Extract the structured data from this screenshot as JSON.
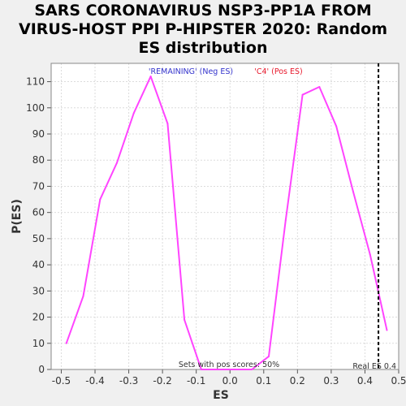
{
  "chart_data": {
    "type": "line",
    "title": "SARS CORONAVIRUS NSP3-PP1A FROM VIRUS-HOST PPI P-HIPSTER 2020: Random ES distribution",
    "xlabel": "ES",
    "ylabel": "P(ES)",
    "xlim": [
      -0.53,
      0.5
    ],
    "ylim": [
      0,
      117
    ],
    "xticks": [
      "-0.5",
      "-0.4",
      "-0.3",
      "-0.2",
      "-0.1",
      "0.0",
      "0.1",
      "0.2",
      "0.3",
      "0.4",
      "0.5"
    ],
    "yticks": [
      "0",
      "10",
      "20",
      "30",
      "40",
      "50",
      "60",
      "70",
      "80",
      "90",
      "100",
      "110"
    ],
    "grid": true,
    "legend": [
      {
        "label": "'REMAINING' (Neg ES)",
        "color": "#3333cc"
      },
      {
        "label": "'C4' (Pos ES)",
        "color": "#e8192c"
      }
    ],
    "series": [
      {
        "color": "#ff44ff",
        "x": [
          -0.485,
          -0.435,
          -0.385,
          -0.335,
          -0.285,
          -0.235,
          -0.185,
          -0.135,
          -0.085,
          -0.035,
          0.015,
          0.065,
          0.115,
          0.165,
          0.215,
          0.265,
          0.315,
          0.365,
          0.415,
          0.465
        ],
        "y": [
          10,
          28,
          65,
          79,
          98,
          112,
          94,
          19,
          0,
          0,
          0,
          0,
          5,
          57,
          105,
          108,
          93,
          68,
          44,
          15
        ]
      }
    ],
    "real_es": {
      "value": 0.44,
      "label": "Real ES 0.4"
    },
    "annotation": "Sets with pos scores: 50%"
  }
}
